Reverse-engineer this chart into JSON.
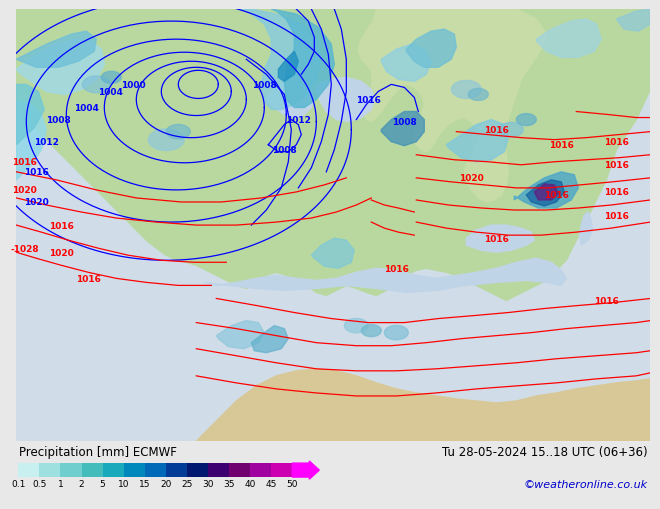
{
  "title_left": "Precipitation [mm] ECMWF",
  "title_right": "Tu 28-05-2024 15..18 UTC (06+36)",
  "credit": "©weatheronline.co.uk",
  "colorbar_values": [
    0.1,
    0.5,
    1,
    2,
    5,
    10,
    15,
    20,
    25,
    30,
    35,
    40,
    45,
    50
  ],
  "colorbar_colors": [
    "#c8f0f0",
    "#9ee0e0",
    "#70cece",
    "#44bcbc",
    "#18aabc",
    "#0088bc",
    "#006ab8",
    "#003c98",
    "#001870",
    "#3c0070",
    "#700070",
    "#a000a0",
    "#cc00b0",
    "#ff00ff"
  ],
  "bg_color": "#e8e8e8",
  "land_color": "#b8d8a0",
  "ocean_color": "#c8dce8",
  "gray_land": "#c0c0c0",
  "credit_color": "#0000cc",
  "font_size_label": 8.5,
  "font_size_credit": 8
}
